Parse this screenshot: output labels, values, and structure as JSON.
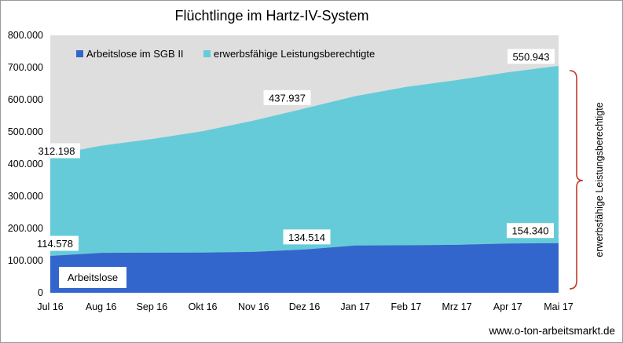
{
  "chart_data": {
    "type": "area",
    "title": "Flüchtlinge im Hartz-IV-System",
    "categories": [
      "Jul 16",
      "Aug 16",
      "Sep 16",
      "Okt 16",
      "Nov 16",
      "Dez 16",
      "Jan 17",
      "Feb 17",
      "Mrz 17",
      "Apr 17",
      "Mai 17"
    ],
    "stacked": true,
    "ylim": [
      0,
      800000
    ],
    "yticks": [
      "0",
      "100.000",
      "200.000",
      "300.000",
      "400.000",
      "500.000",
      "600.000",
      "700.000",
      "800.000"
    ],
    "grid": false,
    "legend_position": "top-left",
    "series": [
      {
        "name": "Arbeitslose im SGB II",
        "color": "#3366cc",
        "values": [
          114578,
          124000,
          124800,
          125000,
          127000,
          134514,
          147000,
          147500,
          149000,
          153000,
          154340
        ]
      },
      {
        "name": "erwerbsfähige Leistungsberechtigte",
        "color": "#66cbd8",
        "values": [
          312198,
          333000,
          353000,
          377000,
          408000,
          437937,
          464000,
          492000,
          512000,
          532000,
          550943
        ]
      }
    ],
    "data_labels": [
      {
        "text": "312.198"
      },
      {
        "text": "437.937"
      },
      {
        "text": "550.943"
      },
      {
        "text": "114.578"
      },
      {
        "text": "134.514"
      },
      {
        "text": "154.340"
      }
    ],
    "annotations": {
      "box_label": "Arbeitslose",
      "bracket_label": "erwerbsfähige  Leistungsberechtigte"
    },
    "colors": {
      "plot_background": "#dedede",
      "bracket": "#c0392b"
    }
  },
  "source": "www.o-ton-arbeitsmarkt.de"
}
